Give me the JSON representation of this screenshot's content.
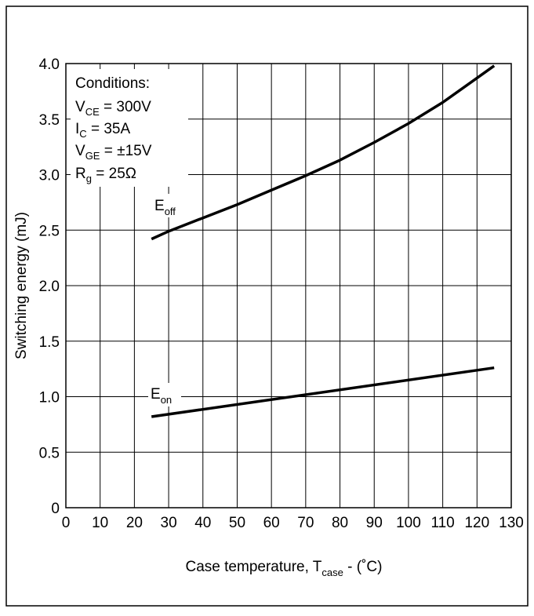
{
  "chart_data": {
    "type": "line",
    "ylabel": "Switching energy (mJ)",
    "xlabel": {
      "main": "Case temperature, T",
      "sub": "case",
      "tail": " - (˚C)"
    },
    "xlim": [
      0,
      130
    ],
    "ylim": [
      0,
      4.0
    ],
    "xticks": [
      0,
      10,
      20,
      30,
      40,
      50,
      60,
      70,
      80,
      90,
      100,
      110,
      120,
      130
    ],
    "yticks": [
      "0",
      "0.5",
      "1.0",
      "1.5",
      "2.0",
      "2.5",
      "3.0",
      "3.5",
      "4.0"
    ],
    "ytick_values": [
      0,
      0.5,
      1.0,
      1.5,
      2.0,
      2.5,
      3.0,
      3.5,
      4.0
    ],
    "grid": true,
    "conditions": {
      "title": "Conditions:",
      "lines": [
        {
          "main": "V",
          "sub": "CE",
          "rest": " = 300V"
        },
        {
          "main": "I",
          "sub": "C",
          "rest": " = 35A"
        },
        {
          "main": "V",
          "sub": "GE",
          "rest": " = ±15V"
        },
        {
          "main": "R",
          "sub": "g",
          "rest": " = 25Ω"
        }
      ]
    },
    "series": [
      {
        "name": "E",
        "name_sub": "off",
        "x": [
          25,
          30,
          40,
          50,
          60,
          70,
          80,
          90,
          100,
          110,
          120,
          125
        ],
        "y": [
          2.42,
          2.49,
          2.61,
          2.73,
          2.86,
          2.99,
          3.13,
          3.29,
          3.46,
          3.65,
          3.87,
          3.98
        ]
      },
      {
        "name": "E",
        "name_sub": "on",
        "x": [
          25,
          125
        ],
        "y": [
          0.82,
          1.26
        ]
      }
    ],
    "line_color": "#000000"
  }
}
